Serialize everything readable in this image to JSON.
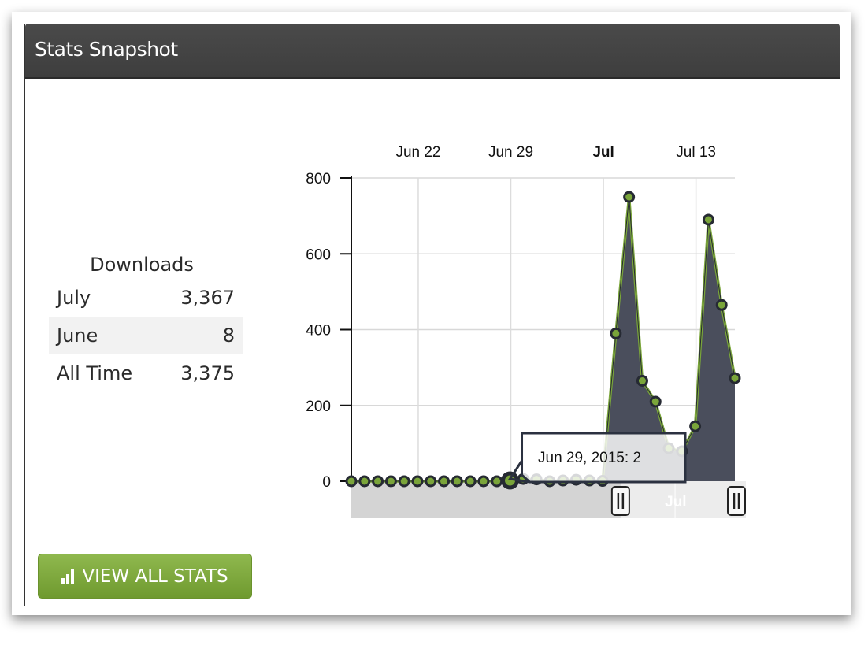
{
  "panel": {
    "title": "Stats Snapshot"
  },
  "downloads": {
    "title": "Downloads",
    "rows": [
      {
        "label": "July",
        "value": "3,367"
      },
      {
        "label": "June",
        "value": "8"
      },
      {
        "label": "All Time",
        "value": "3,375"
      }
    ]
  },
  "button": {
    "label": "VIEW ALL STATS",
    "icon": "bar-chart-icon"
  },
  "tooltip": {
    "text": "Jun 29, 2015: 2"
  },
  "navigator": {
    "label": "Jul"
  },
  "colors": {
    "line": "#7aa53a",
    "area": "#4a4e5c",
    "marker_stroke": "#262a33",
    "header": "#444444",
    "button": "#7aa53a"
  },
  "chart_data": {
    "type": "area",
    "x": [
      "2015-06-17",
      "2015-06-18",
      "2015-06-19",
      "2015-06-20",
      "2015-06-21",
      "2015-06-22",
      "2015-06-23",
      "2015-06-24",
      "2015-06-25",
      "2015-06-26",
      "2015-06-27",
      "2015-06-28",
      "2015-06-29",
      "2015-06-30",
      "2015-07-01",
      "2015-07-02",
      "2015-07-03",
      "2015-07-04",
      "2015-07-05",
      "2015-07-06",
      "2015-07-07",
      "2015-07-08",
      "2015-07-09",
      "2015-07-10",
      "2015-07-11",
      "2015-07-12",
      "2015-07-13",
      "2015-07-14",
      "2015-07-15",
      "2015-07-16"
    ],
    "values": [
      0,
      0,
      0,
      0,
      0,
      0,
      0,
      0,
      0,
      0,
      0,
      0,
      2,
      6,
      5,
      0,
      2,
      4,
      2,
      1,
      390,
      750,
      265,
      210,
      87,
      79,
      145,
      690,
      465,
      272
    ],
    "highlight_index": 12,
    "xticks": [
      {
        "label": "Jun 22",
        "index": 5,
        "bold": false
      },
      {
        "label": "Jun 29",
        "index": 12,
        "bold": false
      },
      {
        "label": "Jul",
        "index": 19,
        "bold": true
      },
      {
        "label": "Jul 13",
        "index": 26,
        "bold": false
      }
    ],
    "yticks": [
      "0",
      "200",
      "400",
      "600",
      "800"
    ],
    "ylim": [
      0,
      800
    ],
    "grid": true,
    "navigator_range": [
      "2015-07-07",
      "2015-07-16"
    ]
  }
}
